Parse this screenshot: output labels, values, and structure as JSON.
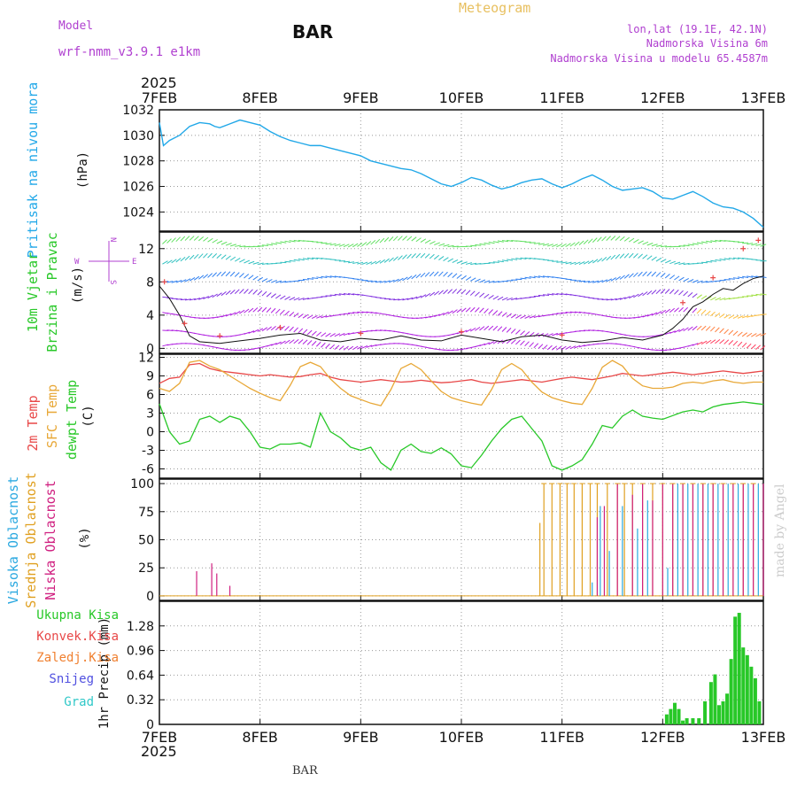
{
  "header": {
    "model_label": "Model",
    "model_name": "wrf-nmm_v3.9.1 e1km",
    "station": "BAR",
    "meteogram_label": "Meteogram",
    "lonlat": "lon,lat (19.1E, 42.1N)",
    "altitude": "Nadmorska Visina 6m",
    "model_altitude": "Nadmorska Visina u modelu 65.4587m",
    "footer_station": "BAR",
    "made_by": "made by Angel"
  },
  "colors": {
    "pressure": "#22a8e8",
    "temp2m": "#e84848",
    "sfc_temp": "#e8a838",
    "dewpt": "#28c828",
    "high_cloud": "#2aa8e0",
    "mid_cloud": "#e0a020",
    "low_cloud": "#d02080",
    "total_precip": "#28c828",
    "conv_precip": "#e84848",
    "frozen_precip": "#f08030",
    "snow": "#5050e0",
    "hail": "#30c8c8",
    "wind_label": "#28c828",
    "wind_compass": "#b040d0"
  },
  "time_axis": {
    "year": "2025",
    "labels": [
      "7FEB",
      "8FEB",
      "9FEB",
      "10FEB",
      "11FEB",
      "12FEB",
      "13FEB"
    ]
  },
  "chart_data": [
    {
      "id": "pressure",
      "type": "line",
      "ylabel_lines": [
        "Pritisak na nivou mora"
      ],
      "unit": "(hPa)",
      "ylim": [
        1022.5,
        1032
      ],
      "yticks": [
        1024,
        1026,
        1028,
        1030,
        1032
      ],
      "grid": true,
      "x_points_days": [
        0,
        0.04,
        0.1,
        0.2,
        0.3,
        0.4,
        0.5,
        0.55,
        0.6,
        0.7,
        0.8,
        0.9,
        1.0,
        1.1,
        1.2,
        1.3,
        1.4,
        1.5,
        1.6,
        1.7,
        1.8,
        1.9,
        2.0,
        2.1,
        2.2,
        2.3,
        2.4,
        2.5,
        2.6,
        2.7,
        2.8,
        2.9,
        3.0,
        3.1,
        3.2,
        3.3,
        3.4,
        3.5,
        3.6,
        3.7,
        3.8,
        3.9,
        4.0,
        4.1,
        4.2,
        4.3,
        4.4,
        4.5,
        4.6,
        4.7,
        4.8,
        4.9,
        5.0,
        5.1,
        5.2,
        5.3,
        5.4,
        5.5,
        5.6,
        5.7,
        5.8,
        5.9,
        6.0
      ],
      "values": [
        1031.0,
        1029.2,
        1029.6,
        1030.0,
        1030.7,
        1031.0,
        1030.9,
        1030.7,
        1030.6,
        1030.9,
        1031.2,
        1031.0,
        1030.8,
        1030.3,
        1029.9,
        1029.6,
        1029.4,
        1029.2,
        1029.2,
        1029.0,
        1028.8,
        1028.6,
        1028.4,
        1028.0,
        1027.8,
        1027.6,
        1027.4,
        1027.3,
        1027.0,
        1026.6,
        1026.2,
        1026.0,
        1026.3,
        1026.7,
        1026.5,
        1026.1,
        1025.8,
        1026.0,
        1026.3,
        1026.5,
        1026.6,
        1026.2,
        1025.9,
        1026.2,
        1026.6,
        1026.9,
        1026.5,
        1026.0,
        1025.7,
        1025.8,
        1025.9,
        1025.6,
        1025.1,
        1025.0,
        1025.3,
        1025.6,
        1025.2,
        1024.7,
        1024.4,
        1024.3,
        1024.0,
        1023.5,
        1022.8
      ],
      "series_name": ""
    },
    {
      "id": "wind",
      "type": "scatter",
      "ylabel_lines": [
        "10m Vjetar",
        "Brzina i Pravac"
      ],
      "unit": "(m/s)",
      "compass": {
        "n": "N",
        "s": "S",
        "e": "E",
        "w": "W"
      },
      "ylim": [
        -0.6,
        14
      ],
      "yticks": [
        0,
        4,
        8,
        12
      ],
      "grid": true,
      "speed_x_days": [
        0,
        0.1,
        0.2,
        0.3,
        0.4,
        0.6,
        0.8,
        1.0,
        1.2,
        1.4,
        1.6,
        1.8,
        2.0,
        2.2,
        2.4,
        2.6,
        2.8,
        3.0,
        3.2,
        3.4,
        3.6,
        3.8,
        4.0,
        4.2,
        4.4,
        4.6,
        4.8,
        5.0,
        5.1,
        5.2,
        5.3,
        5.4,
        5.5,
        5.6,
        5.7,
        5.8,
        5.9,
        6.0
      ],
      "speed_values": [
        7.5,
        6.0,
        4.0,
        1.5,
        0.8,
        0.6,
        0.9,
        1.2,
        1.6,
        1.8,
        1.0,
        0.8,
        1.2,
        1.0,
        1.5,
        1.0,
        0.9,
        1.6,
        1.2,
        0.8,
        1.4,
        1.6,
        1.0,
        0.7,
        0.9,
        1.3,
        1.0,
        1.6,
        2.4,
        3.5,
        5.0,
        5.6,
        6.5,
        7.2,
        7.0,
        7.8,
        8.4,
        8.7
      ],
      "gust_x_days": [
        0.05,
        0.25,
        0.6,
        1.2,
        2.0,
        3.0,
        4.0,
        5.2,
        5.5,
        5.8,
        5.95
      ],
      "gust_values": [
        8.0,
        3.0,
        1.5,
        2.5,
        1.8,
        2.0,
        1.6,
        5.5,
        8.5,
        12.0,
        13.0
      ]
    },
    {
      "id": "temperature",
      "type": "line",
      "ylabel_lines": [
        "2m Temp",
        "SFC Temp",
        "dewpt Temp"
      ],
      "unit": "(C)",
      "ylim": [
        -7.5,
        12.5
      ],
      "yticks": [
        -6,
        -3,
        0,
        3,
        6,
        9,
        12
      ],
      "grid": true,
      "x_points_days": [
        0,
        0.1,
        0.2,
        0.3,
        0.4,
        0.5,
        0.6,
        0.7,
        0.8,
        0.9,
        1.0,
        1.1,
        1.2,
        1.3,
        1.4,
        1.5,
        1.6,
        1.7,
        1.8,
        1.9,
        2.0,
        2.1,
        2.2,
        2.3,
        2.4,
        2.5,
        2.6,
        2.7,
        2.8,
        2.9,
        3.0,
        3.1,
        3.2,
        3.3,
        3.4,
        3.5,
        3.6,
        3.7,
        3.8,
        3.9,
        4.0,
        4.1,
        4.2,
        4.3,
        4.4,
        4.5,
        4.6,
        4.7,
        4.8,
        4.9,
        5.0,
        5.1,
        5.2,
        5.3,
        5.4,
        5.5,
        5.6,
        5.7,
        5.8,
        5.9,
        6.0
      ],
      "series": [
        {
          "name": "2m Temp",
          "values": [
            7.8,
            8.6,
            8.8,
            10.8,
            11.0,
            10.2,
            9.8,
            9.6,
            9.4,
            9.2,
            9.0,
            9.2,
            9.0,
            8.8,
            8.9,
            9.2,
            9.4,
            8.8,
            8.4,
            8.2,
            8.0,
            8.2,
            8.4,
            8.2,
            8.0,
            8.1,
            8.3,
            8.1,
            7.9,
            8.0,
            8.2,
            8.4,
            8.0,
            7.8,
            8.0,
            8.2,
            8.4,
            8.2,
            8.0,
            8.3,
            8.6,
            8.8,
            8.6,
            8.4,
            8.7,
            9.0,
            9.4,
            9.2,
            9.0,
            9.2,
            9.4,
            9.6,
            9.4,
            9.2,
            9.4,
            9.6,
            9.8,
            9.6,
            9.4,
            9.6,
            9.8
          ]
        },
        {
          "name": "SFC Temp",
          "values": [
            7.0,
            6.5,
            7.8,
            11.2,
            11.5,
            10.6,
            10.0,
            9.0,
            8.0,
            7.0,
            6.2,
            5.5,
            5.0,
            7.5,
            10.5,
            11.2,
            10.5,
            8.5,
            7.0,
            5.8,
            5.2,
            4.6,
            4.2,
            6.8,
            10.2,
            11.0,
            10.0,
            8.2,
            6.5,
            5.5,
            5.0,
            4.6,
            4.3,
            6.8,
            10.0,
            11.0,
            10.0,
            8.0,
            6.4,
            5.5,
            5.0,
            4.6,
            4.4,
            7.0,
            10.4,
            11.5,
            10.6,
            8.6,
            7.4,
            7.0,
            7.0,
            7.2,
            7.8,
            8.0,
            7.8,
            8.2,
            8.4,
            8.0,
            7.8,
            8.0,
            8.0
          ]
        },
        {
          "name": "dewpt Temp",
          "values": [
            4.5,
            0.0,
            -2.0,
            -1.5,
            2.0,
            2.5,
            1.5,
            2.5,
            2.0,
            0.0,
            -2.5,
            -2.8,
            -2.0,
            -2.0,
            -1.8,
            -2.5,
            3.0,
            0.0,
            -1.0,
            -2.5,
            -3.0,
            -2.5,
            -5.0,
            -6.2,
            -3.0,
            -2.0,
            -3.2,
            -3.5,
            -2.6,
            -3.6,
            -5.5,
            -5.8,
            -3.8,
            -1.5,
            0.5,
            2.0,
            2.5,
            0.5,
            -1.5,
            -5.5,
            -6.2,
            -5.5,
            -4.5,
            -2.0,
            1.0,
            0.6,
            2.5,
            3.5,
            2.5,
            2.2,
            2.0,
            2.6,
            3.2,
            3.5,
            3.2,
            4.0,
            4.4,
            4.6,
            4.8,
            4.6,
            4.4
          ]
        }
      ]
    },
    {
      "id": "cloud",
      "type": "bar",
      "ylabel_lines": [
        "Visoka Oblacnost",
        "Srednja Oblacnost",
        "Niska Oblacnost"
      ],
      "unit": "(%)",
      "ylim": [
        -4,
        104
      ],
      "yticks": [
        0,
        25,
        50,
        75,
        100
      ],
      "grid": true,
      "low_x_days": [
        0.37,
        0.52,
        0.57,
        0.7,
        4.35,
        4.42,
        4.55,
        4.7,
        4.8,
        4.9,
        5.0,
        5.1,
        5.2,
        5.3,
        5.4,
        5.5,
        5.6,
        5.7,
        5.8,
        5.9,
        6.0
      ],
      "low_values": [
        22,
        29,
        20,
        9,
        70,
        80,
        100,
        90,
        100,
        85,
        100,
        100,
        100,
        100,
        100,
        100,
        100,
        100,
        100,
        100,
        100
      ],
      "mid_x_days": [
        3.78,
        3.82,
        3.9,
        3.98,
        4.05,
        4.12,
        4.2,
        4.28,
        4.35,
        4.45,
        4.55,
        4.62,
        4.7,
        4.8,
        4.9,
        5.0,
        5.1,
        5.2,
        5.3,
        5.4,
        5.5,
        5.6,
        5.7,
        5.8,
        5.9
      ],
      "mid_values": [
        65,
        100,
        100,
        100,
        100,
        100,
        100,
        100,
        100,
        100,
        100,
        100,
        100,
        100,
        100,
        100,
        100,
        100,
        100,
        100,
        100,
        100,
        100,
        100,
        100
      ],
      "high_x_days": [
        4.3,
        4.38,
        4.47,
        4.6,
        4.75,
        4.85,
        5.05,
        5.15,
        5.25,
        5.35,
        5.45,
        5.55,
        5.65,
        5.75,
        5.85,
        5.95
      ],
      "high_values": [
        12,
        80,
        40,
        80,
        60,
        85,
        25,
        100,
        100,
        100,
        100,
        100,
        100,
        100,
        100,
        100
      ]
    },
    {
      "id": "precip",
      "type": "bar",
      "legend": [
        "Ukupna Kisa",
        "Konvek.Kisa",
        "Zaledj.Kisa",
        "Snijeg",
        "Grad"
      ],
      "ylabel_lines": [
        "1hr Precip (mm)"
      ],
      "ylim": [
        0,
        1.6
      ],
      "yticks": [
        0,
        0.32,
        0.64,
        0.96,
        1.28
      ],
      "grid": true,
      "x_days": [
        5.04,
        5.08,
        5.12,
        5.16,
        5.2,
        5.24,
        5.3,
        5.36,
        5.42,
        5.48,
        5.52,
        5.56,
        5.6,
        5.64,
        5.68,
        5.72,
        5.76,
        5.8,
        5.84,
        5.88,
        5.92,
        5.96
      ],
      "values": [
        0.13,
        0.2,
        0.28,
        0.2,
        0.05,
        0.08,
        0.08,
        0.08,
        0.3,
        0.55,
        0.65,
        0.25,
        0.3,
        0.4,
        0.85,
        1.4,
        1.45,
        1.0,
        0.9,
        0.75,
        0.6,
        0.3
      ]
    }
  ]
}
